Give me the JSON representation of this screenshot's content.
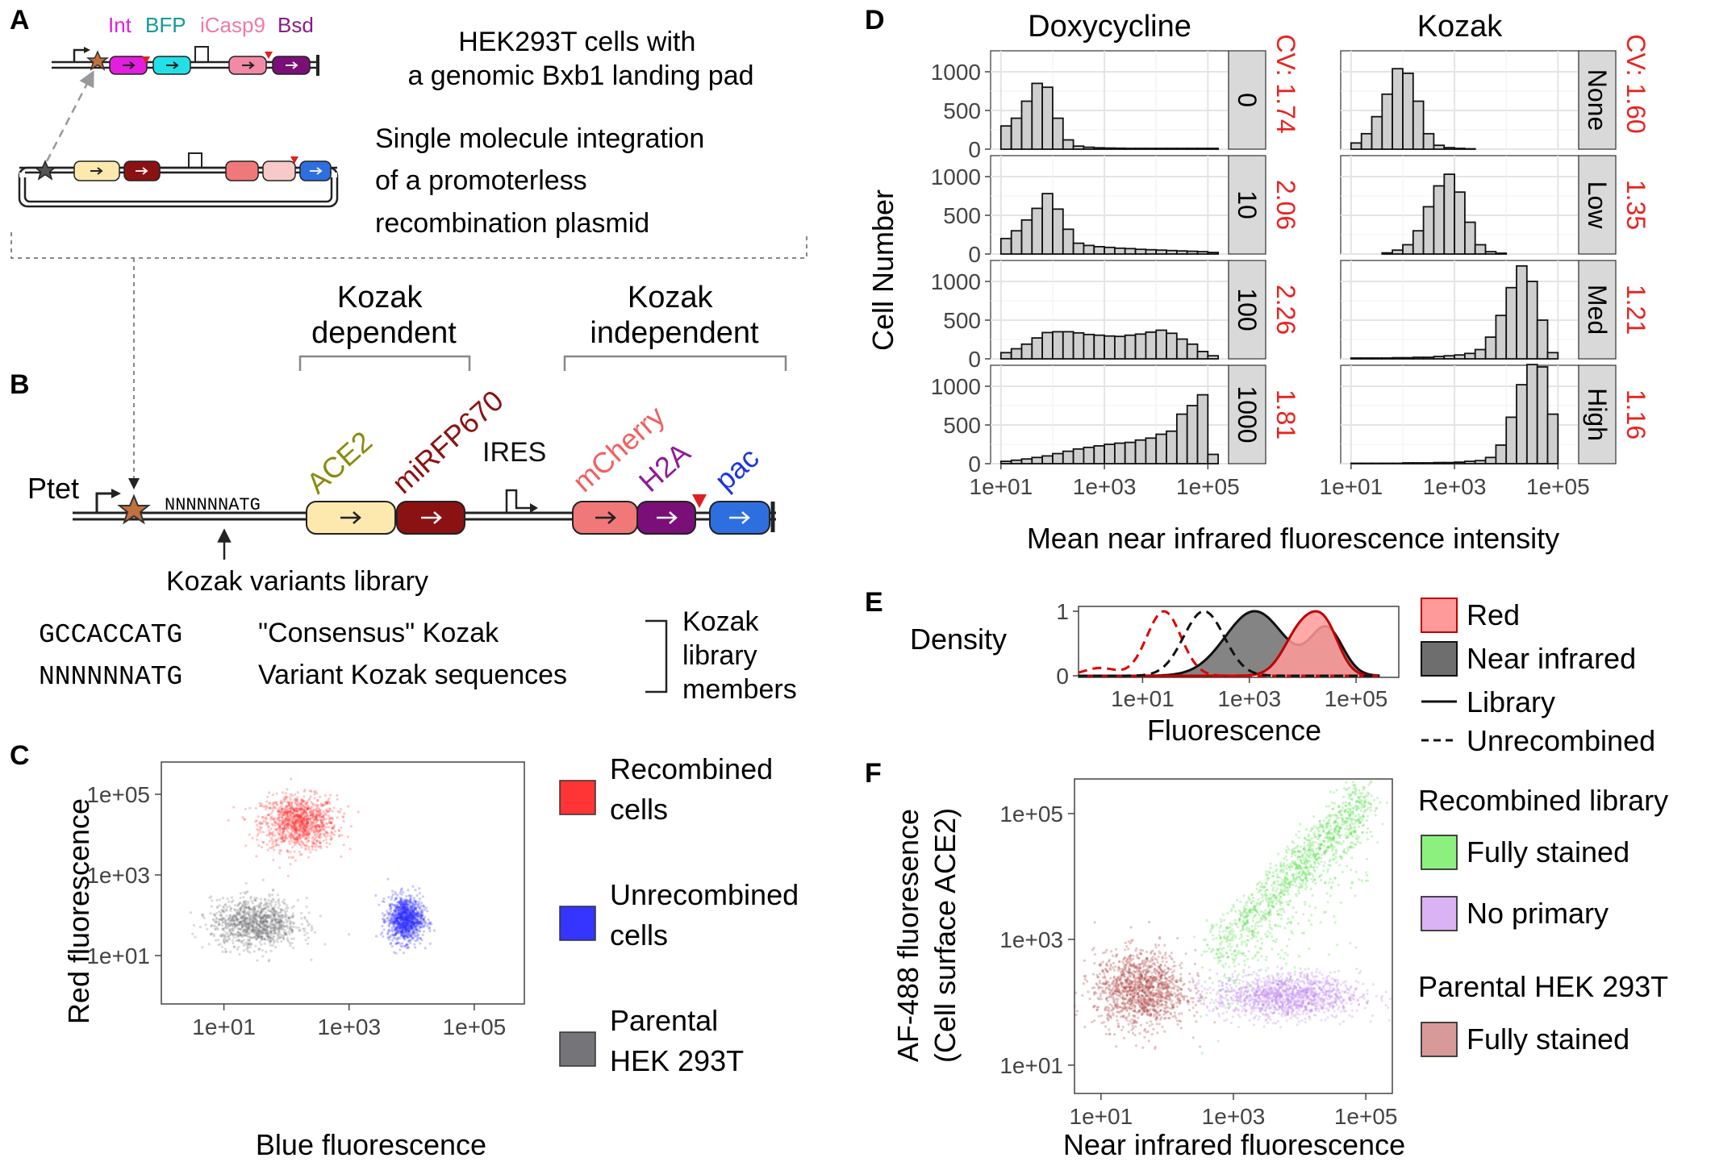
{
  "panel_letters": {
    "A": "A",
    "B": "B",
    "C": "C",
    "D": "D",
    "E": "E",
    "F": "F"
  },
  "panel_a": {
    "gene_labels": [
      {
        "text": "Int",
        "color": "#e21fdc"
      },
      {
        "text": "BFP",
        "color": "#129a9a"
      },
      {
        "text": "iCasp9",
        "color": "#f07aa2"
      },
      {
        "text": "Bsd",
        "color": "#8a1b86"
      }
    ],
    "caption1_lines": [
      "HEK293T cells with",
      "a genomic Bxb1 landing pad"
    ],
    "caption2_lines": [
      "Single molecule integration",
      "of a promoterless",
      "recombination plasmid"
    ]
  },
  "panel_b": {
    "group_labels": [
      {
        "lines": [
          "Kozak",
          "dependent"
        ]
      },
      {
        "lines": [
          "Kozak",
          "independent"
        ]
      }
    ],
    "gene_labels": [
      {
        "text": "ACE2",
        "color": "#8a8a10"
      },
      {
        "text": "miRFP670",
        "color": "#8b1212"
      },
      {
        "text": "IRES",
        "color": "#111111"
      },
      {
        "text": "mCherry",
        "color": "#f06060"
      },
      {
        "text": "H2A",
        "color": "#8e1d99"
      },
      {
        "text": "pac",
        "color": "#1d35e0"
      }
    ],
    "ptet_label": "Ptet",
    "seq_label": "NNNNNNATG",
    "library_label": "Kozak variants library",
    "kozak_rows": [
      {
        "seq": "GCCACCATG",
        "desc": "\"Consensus\" Kozak"
      },
      {
        "seq": "NNNNNNATG",
        "desc": "Variant Kozak sequences"
      }
    ],
    "bracket_lines": [
      "Kozak",
      "library",
      "members"
    ]
  },
  "panel_c": {
    "chart_data": {
      "type": "scatter",
      "xlabel": "Blue fluorescence",
      "ylabel": "Red fluorescence",
      "x_scale": "log10",
      "y_scale": "log10",
      "xlim_log10": [
        0.0,
        5.8
      ],
      "ylim_log10": [
        -0.2,
        5.8
      ],
      "x_ticks": [
        "1e+01",
        "1e+03",
        "1e+05"
      ],
      "y_ticks": [
        "1e+01",
        "1e+03",
        "1e+05"
      ],
      "grid": false,
      "series": [
        {
          "name": "Recombined cells",
          "label_lines": [
            "Recombined",
            "cells"
          ],
          "color": "#ff2a2a",
          "center_log10": [
            2.2,
            4.3
          ],
          "spread_log10": [
            0.3,
            0.33
          ]
        },
        {
          "name": "Unrecombined cells",
          "label_lines": [
            "Unrecombined",
            "cells"
          ],
          "color": "#2a2aff",
          "center_log10": [
            3.9,
            1.9
          ],
          "spread_log10": [
            0.14,
            0.28
          ]
        },
        {
          "name": "Parental HEK 293T",
          "label_lines": [
            "Parental",
            "HEK 293T"
          ],
          "color": "#6e6e72",
          "center_log10": [
            1.5,
            1.8
          ],
          "spread_log10": [
            0.35,
            0.3
          ]
        }
      ],
      "legend_placement": "right"
    }
  },
  "panel_d": {
    "chart_data": {
      "type": "bar",
      "xlabel": "Mean near infrared fluorescence intensity",
      "ylabel": "Cell Number",
      "x_scale": "log10",
      "xlim_log10": [
        0.8,
        5.4
      ],
      "ylim": [
        0,
        1250
      ],
      "x_ticks": [
        "1e+01",
        "1e+03",
        "1e+05"
      ],
      "y_ticks": [
        "0",
        "500",
        "1000"
      ],
      "bin_starts_log10": [
        1.0,
        1.2,
        1.4,
        1.6,
        1.8,
        2.0,
        2.2,
        2.4,
        2.6,
        2.8,
        3.0,
        3.2,
        3.4,
        3.6,
        3.8,
        4.0,
        4.2,
        4.4,
        4.6,
        4.8,
        5.0
      ],
      "bin_width_log10": 0.2,
      "columns": [
        {
          "title": "Doxycycline",
          "cv_prefix": "CV: ",
          "facets": [
            {
              "strip": "0",
              "cv": "1.74",
              "values": [
                300,
                400,
                620,
                850,
                800,
                400,
                120,
                40,
                25,
                18,
                15,
                12,
                10,
                10,
                10,
                10,
                10,
                10,
                10,
                10,
                10
              ]
            },
            {
              "strip": "10",
              "cv": "2.06",
              "values": [
                200,
                300,
                440,
                590,
                780,
                580,
                320,
                140,
                110,
                95,
                85,
                75,
                70,
                60,
                55,
                50,
                45,
                40,
                35,
                30,
                20
              ]
            },
            {
              "strip": "100",
              "cv": "2.26",
              "values": [
                80,
                130,
                190,
                270,
                340,
                350,
                350,
                335,
                315,
                305,
                295,
                290,
                305,
                320,
                345,
                370,
                330,
                255,
                190,
                95,
                40
              ]
            },
            {
              "strip": "1000",
              "cv": "1.81",
              "values": [
                30,
                45,
                60,
                80,
                100,
                130,
                160,
                190,
                210,
                230,
                250,
                265,
                275,
                305,
                330,
                380,
                420,
                640,
                750,
                890,
                120
              ]
            }
          ]
        },
        {
          "title": "Kozak",
          "cv_prefix": "CV: ",
          "facets": [
            {
              "strip": "None",
              "cv": "1.60",
              "values": [
                80,
                200,
                420,
                710,
                1040,
                980,
                620,
                200,
                50,
                20,
                10,
                5,
                0,
                0,
                0,
                0,
                0,
                0,
                0,
                0,
                0
              ]
            },
            {
              "strip": "Low",
              "cv": "1.35",
              "values": [
                0,
                0,
                0,
                15,
                50,
                120,
                300,
                610,
                880,
                1030,
                800,
                410,
                120,
                30,
                10,
                0,
                0,
                0,
                0,
                0,
                0
              ]
            },
            {
              "strip": "Med",
              "cv": "1.21",
              "values": [
                10,
                10,
                10,
                10,
                15,
                15,
                20,
                20,
                30,
                40,
                50,
                70,
                120,
                280,
                560,
                920,
                1200,
                1000,
                500,
                80,
                0
              ]
            },
            {
              "strip": "High",
              "cv": "1.16",
              "values": [
                5,
                5,
                5,
                5,
                5,
                10,
                10,
                10,
                15,
                15,
                20,
                30,
                40,
                80,
                240,
                600,
                1020,
                1280,
                1250,
                640,
                0
              ]
            }
          ]
        }
      ]
    }
  },
  "panel_e": {
    "chart_data": {
      "type": "area",
      "xlabel": "Fluorescence",
      "ylabel": "Density",
      "x_scale": "log10",
      "xlim_log10": [
        -0.2,
        5.8
      ],
      "ylim": [
        0,
        1.05
      ],
      "x_ticks": [
        "1e+01",
        "1e+03",
        "1e+05"
      ],
      "y_ticks": [
        "0",
        "1"
      ],
      "series": [
        {
          "name": "Near infrared library",
          "style": "solid",
          "fill": "#6e6e6e",
          "stroke": "#111111",
          "peaks": [
            {
              "mu": 3.1,
              "sigma": 0.55,
              "amp": 0.95
            },
            {
              "mu": 4.45,
              "sigma": 0.3,
              "amp": 0.68
            }
          ]
        },
        {
          "name": "Red library",
          "style": "solid",
          "fill": "#ff9a9a",
          "stroke": "#c00000",
          "peaks": [
            {
              "mu": 4.0,
              "sigma": 0.33,
              "amp": 0.72
            },
            {
              "mu": 4.45,
              "sigma": 0.26,
              "amp": 0.55
            }
          ]
        },
        {
          "name": "Red unrecombined",
          "style": "dashed",
          "fill": "none",
          "stroke": "#e00000",
          "peaks": [
            {
              "mu": 1.4,
              "sigma": 0.32,
              "amp": 1.0
            },
            {
              "mu": 0.2,
              "sigma": 0.3,
              "amp": 0.12
            }
          ]
        },
        {
          "name": "Near infrared unrecombined",
          "style": "dashed",
          "fill": "none",
          "stroke": "#111111",
          "peaks": [
            {
              "mu": 2.15,
              "sigma": 0.38,
              "amp": 1.0
            }
          ]
        }
      ],
      "legend": [
        {
          "label": "Red",
          "kind": "fill",
          "color": "#ff9a9a",
          "stroke": "#c00000"
        },
        {
          "label": "Near infrared",
          "kind": "fill",
          "color": "#6e6e6e",
          "stroke": "#111111"
        },
        {
          "label": "Library",
          "kind": "solid"
        },
        {
          "label": "Unrecombined",
          "kind": "dashed"
        }
      ],
      "legend_placement": "right"
    }
  },
  "panel_f": {
    "chart_data": {
      "type": "scatter",
      "xlabel": "Near infrared fluorescence",
      "ylabel_lines": [
        "AF-488 fluoresence",
        "(Cell surface ACE2)"
      ],
      "x_scale": "log10",
      "y_scale": "log10",
      "xlim_log10": [
        0.6,
        5.4
      ],
      "ylim_log10": [
        0.55,
        5.55
      ],
      "x_ticks": [
        "1e+01",
        "1e+03",
        "1e+05"
      ],
      "y_ticks": [
        "1e+01",
        "1e+03",
        "1e+05"
      ],
      "grid": false,
      "series": [
        {
          "name": "Fully stained",
          "group": "Recombined library",
          "color": "#55e04a",
          "shape": "diagonal band",
          "from_log10": [
            2.6,
            2.85
          ],
          "to_log10": [
            5.0,
            5.45
          ]
        },
        {
          "name": "No primary",
          "group": "Recombined library",
          "color": "#c08af0",
          "center_log10": [
            3.8,
            2.1
          ],
          "spread_log10": [
            0.55,
            0.18
          ]
        },
        {
          "name": "Fully stained",
          "group": "Parental HEK 293T",
          "color": "#b0484a",
          "center_log10": [
            1.6,
            2.2
          ],
          "spread_log10": [
            0.35,
            0.3
          ]
        }
      ],
      "legend_groups": [
        {
          "title": "Recombined library",
          "items": [
            {
              "label": "Fully stained",
              "color": "#8cf07e"
            },
            {
              "label": "No primary",
              "color": "#d9b3f3"
            }
          ]
        },
        {
          "title": "Parental HEK 293T",
          "items": [
            {
              "label": "Fully stained",
              "color": "#d89a98"
            }
          ]
        }
      ],
      "legend_placement": "right"
    }
  }
}
